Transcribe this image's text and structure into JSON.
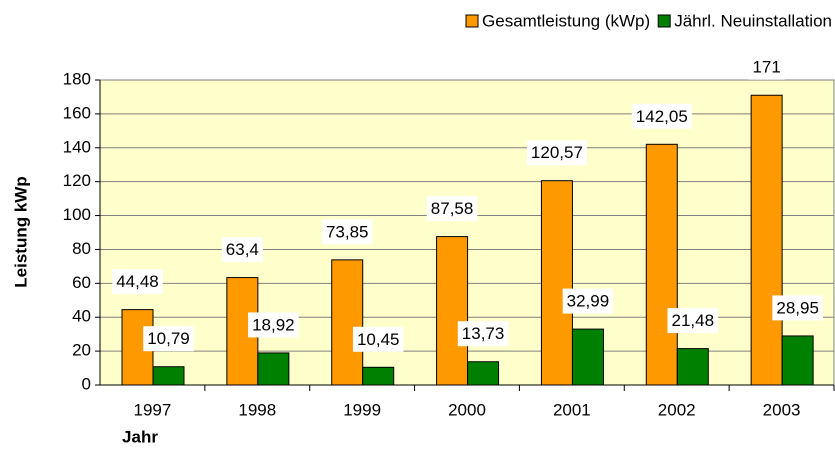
{
  "chart_data": {
    "type": "bar",
    "categories": [
      "1997",
      "1998",
      "1999",
      "2000",
      "2001",
      "2002",
      "2003"
    ],
    "series": [
      {
        "name": "Gesamtleistung (kWp)",
        "color": "#ff9900",
        "values": [
          44.48,
          63.4,
          73.85,
          87.58,
          120.57,
          142.05,
          171
        ],
        "value_labels": [
          "44,48",
          "63,4",
          "73,85",
          "87,58",
          "120,57",
          "142,05",
          "171"
        ]
      },
      {
        "name": "Jährl. Neuinstallation",
        "color": "#008000",
        "values": [
          10.79,
          18.92,
          10.45,
          13.73,
          32.99,
          21.48,
          28.95
        ],
        "value_labels": [
          "10,79",
          "18,92",
          "10,45",
          "13,73",
          "32,99",
          "21,48",
          "28,95"
        ]
      }
    ],
    "xlabel": "Jahr",
    "ylabel": "Leistung kWp",
    "ylim": [
      0,
      180
    ],
    "yticks": [
      0,
      20,
      40,
      60,
      80,
      100,
      120,
      140,
      160,
      180
    ],
    "grid": true,
    "legend": "top-right",
    "background": "#ffffcc"
  }
}
